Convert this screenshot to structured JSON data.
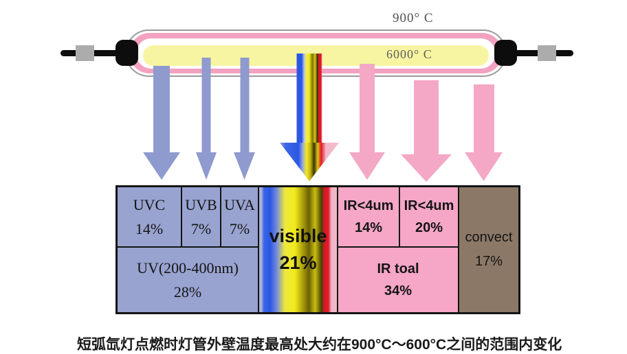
{
  "lamp": {
    "outer_temperature_label": "900° C",
    "core_temperature_label": "6000° C",
    "colors": {
      "envelope_outline": "#9b9b9b",
      "plasma_ring": "#f2a2c0",
      "core": "#f8f5a2",
      "electrode": "#0d0d0d",
      "terminal": "#acacac"
    }
  },
  "arrows": [
    {
      "id": "uvc",
      "color": "#8f9bce"
    },
    {
      "id": "uvb",
      "color": "#8f9bce"
    },
    {
      "id": "uva",
      "color": "#8f9bce"
    },
    {
      "id": "visible",
      "color": "spectrum-gradient-blue-yellow-red-pink"
    },
    {
      "id": "ir-short",
      "color": "#f4a8c6"
    },
    {
      "id": "ir-long",
      "color": "#f4a8c6"
    },
    {
      "id": "convection",
      "color": "#f4a8c6"
    }
  ],
  "energy_table": {
    "uv_section": {
      "background": "#99a3d0",
      "cells": [
        {
          "label": "UVC",
          "value": "14%"
        },
        {
          "label": "UVB",
          "value": "7%"
        },
        {
          "label": "UVA",
          "value": "7%"
        }
      ],
      "total_label": "UV(200-400nm)",
      "total_value": "28%"
    },
    "visible_section": {
      "label": "visible",
      "value": "21%"
    },
    "ir_section": {
      "background": "#f6a6c6",
      "cells": [
        {
          "label": "IR<4um",
          "value": "14%"
        },
        {
          "label": "IR<4um",
          "value": "20%"
        }
      ],
      "total_label": "IR toal",
      "total_value": "34%"
    },
    "convect_section": {
      "background": "#8b7867",
      "label": "convect",
      "value": "17%"
    }
  },
  "caption": {
    "text": "短弧氙灯点燃时灯管外壁温度最高处大约在900°C～600°C之间的范围内变化"
  },
  "chart_data": {
    "type": "table",
    "categories": [
      "UVC",
      "UVB",
      "UVA",
      "visible",
      "IR<4um",
      "IR<4um",
      "convect"
    ],
    "values": [
      14,
      7,
      7,
      21,
      14,
      20,
      17
    ],
    "group_totals": {
      "UV(200-400nm)": 28,
      "IR toal": 34
    },
    "units": "%",
    "annotations": [
      "900° C",
      "6000° C"
    ]
  }
}
